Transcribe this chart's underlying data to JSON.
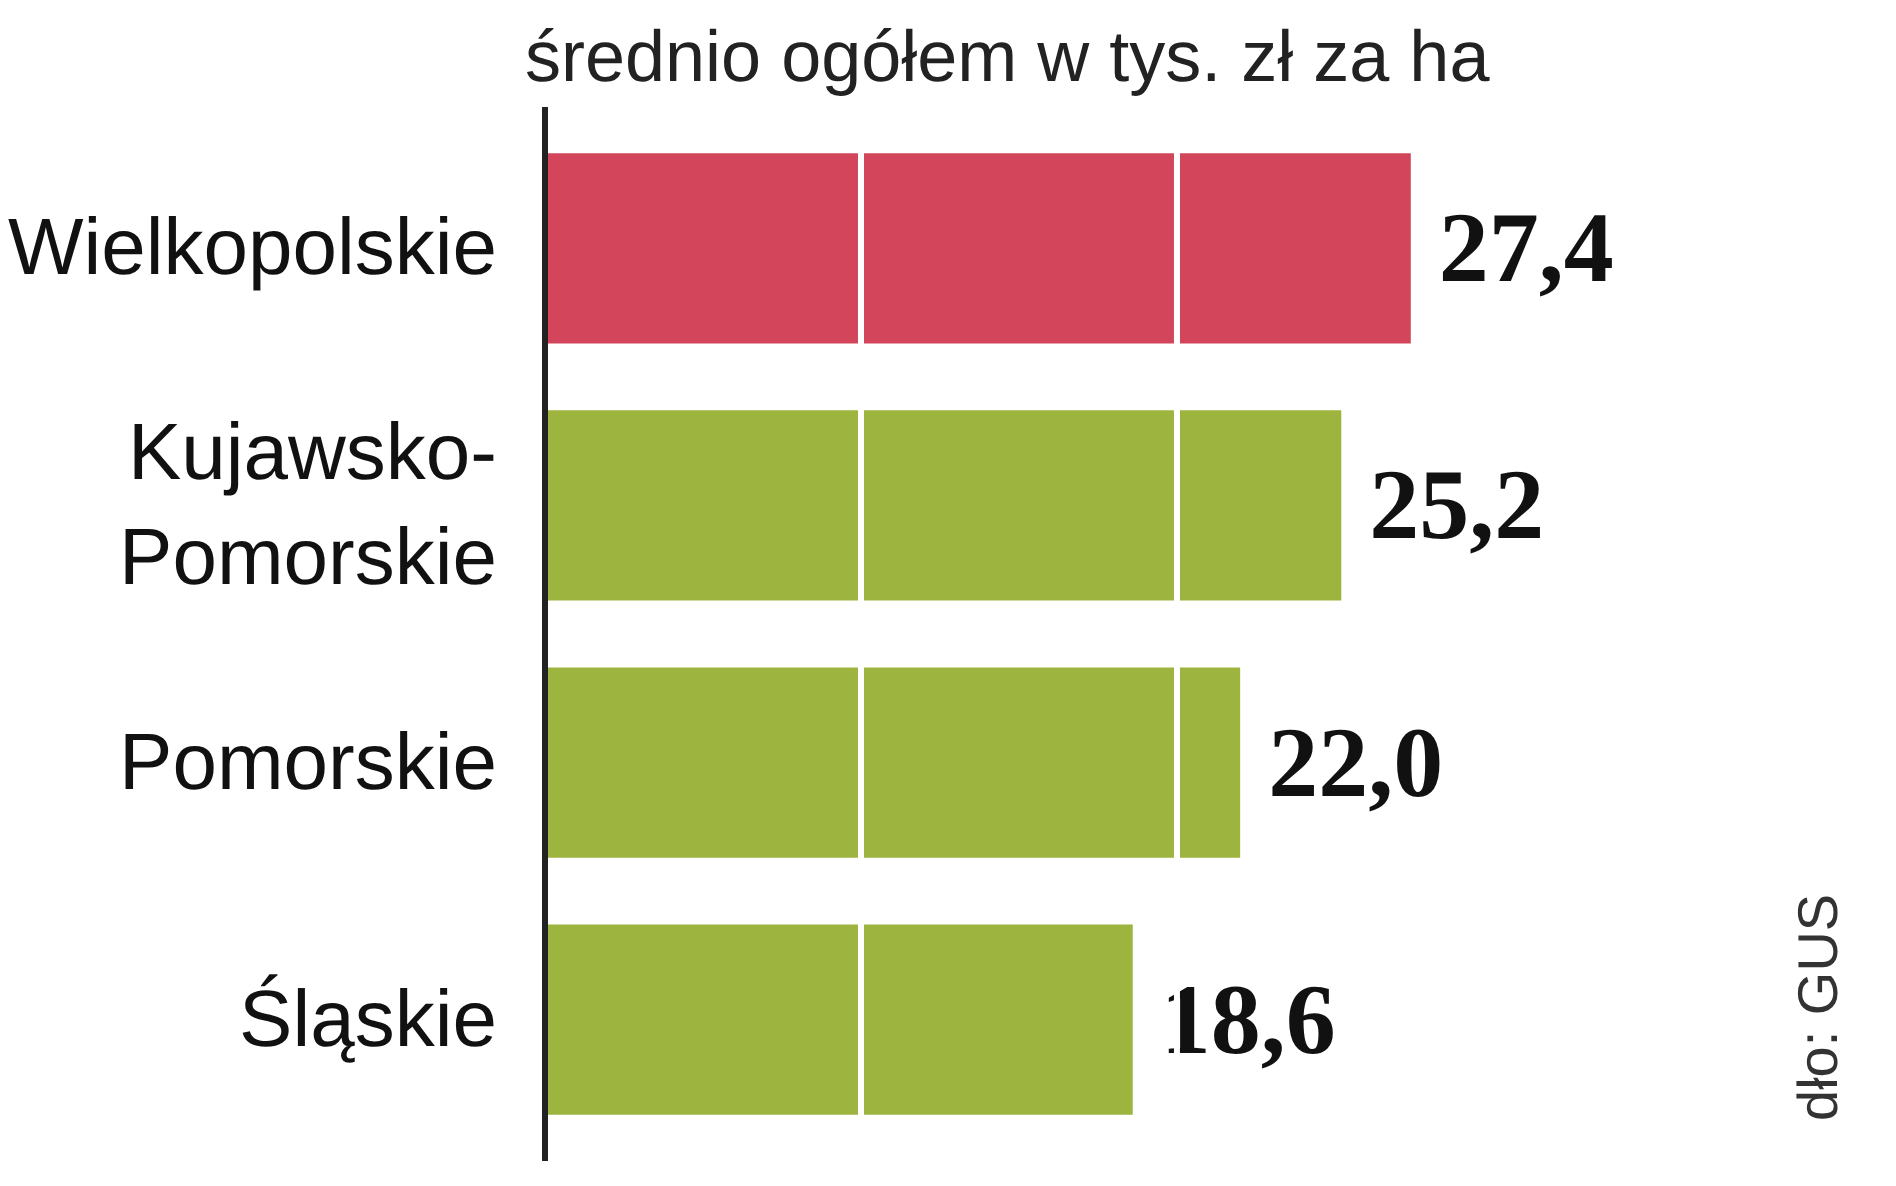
{
  "chart_data": {
    "type": "bar",
    "orientation": "horizontal",
    "title": "średnio ogółem w tys. zł za ha",
    "categories": [
      "Wielkopolskie",
      "Kujawsko-Pomorskie",
      "Pomorskie",
      "Śląskie"
    ],
    "values": [
      27.4,
      25.2,
      22.0,
      18.6
    ],
    "colors": [
      "#d3455a",
      "#9db43e",
      "#9db43e",
      "#9db43e"
    ],
    "value_labels": [
      "27,4",
      "25,2",
      "22,0",
      "18,6"
    ],
    "ref_lines": [
      {
        "axis": "x",
        "value": 10,
        "color": "#ffffff"
      },
      {
        "axis": "x",
        "value": 20,
        "color": "#ffffff"
      }
    ],
    "tick_labels": "y",
    "annotations": [
      "dło: GUS"
    ]
  }
}
